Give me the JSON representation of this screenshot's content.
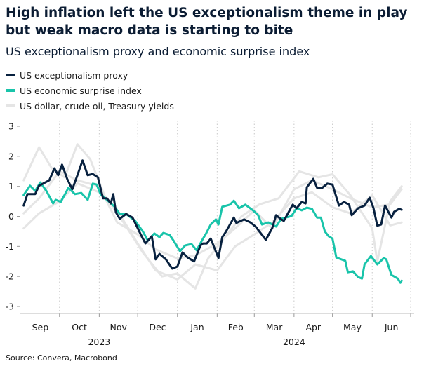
{
  "title": "High inflation left the US exceptionalism theme in play but weak macro data is starting to bite",
  "subtitle": "US exceptionalism proxy and economic surprise index",
  "source": "Source: Convera, Macrobond",
  "colors": {
    "proxy": "#08213f",
    "surprise": "#19c4aa",
    "grey": "#e5e5e5"
  },
  "chart_data": {
    "type": "line",
    "title": "High inflation left the US exceptionalism theme in play but weak macro data is starting to bite",
    "subtitle": "US exceptionalism proxy and economic surprise index",
    "xlim": [
      "2023-09-01",
      "2024-07-01"
    ],
    "ylim": [
      -3,
      3
    ],
    "yticks": [
      3,
      2,
      1,
      0,
      -1,
      -2,
      -3
    ],
    "month_ticks": [
      "Sep",
      "Oct",
      "Nov",
      "Dec",
      "Jan",
      "Feb",
      "Mar",
      "Apr",
      "May",
      "Jun"
    ],
    "year_labels": [
      "2023",
      "2024"
    ],
    "grid": "vertical dotted at month boundaries",
    "legend": [
      "US exceptionalism proxy",
      "US economic surprise index",
      "US dollar, crude oil, Treasury yields"
    ],
    "legend_placement": "top-left",
    "series": [
      {
        "name": "US exceptionalism proxy",
        "color": "#08213f",
        "points": [
          [
            "2023-09-03",
            0.36
          ],
          [
            "2023-09-06",
            0.74
          ],
          [
            "2023-09-12",
            0.74
          ],
          [
            "2023-09-15",
            1.02
          ],
          [
            "2023-09-23",
            1.2
          ],
          [
            "2023-09-27",
            1.6
          ],
          [
            "2023-09-30",
            1.37
          ],
          [
            "2023-10-03",
            1.72
          ],
          [
            "2023-10-07",
            1.25
          ],
          [
            "2023-10-11",
            0.9
          ],
          [
            "2023-10-15",
            1.37
          ],
          [
            "2023-10-19",
            1.86
          ],
          [
            "2023-10-23",
            1.37
          ],
          [
            "2023-10-27",
            1.41
          ],
          [
            "2023-10-31",
            1.3
          ],
          [
            "2023-11-04",
            0.6
          ],
          [
            "2023-11-07",
            0.6
          ],
          [
            "2023-11-10",
            0.43
          ],
          [
            "2023-11-12",
            0.74
          ],
          [
            "2023-11-14",
            0.13
          ],
          [
            "2023-11-17",
            -0.08
          ],
          [
            "2023-11-22",
            0.08
          ],
          [
            "2023-11-27",
            -0.04
          ],
          [
            "2023-12-03",
            -0.57
          ],
          [
            "2023-12-07",
            -0.9
          ],
          [
            "2023-12-12",
            -0.66
          ],
          [
            "2023-12-15",
            -1.43
          ],
          [
            "2023-12-18",
            -1.25
          ],
          [
            "2023-12-23",
            -1.43
          ],
          [
            "2023-12-28",
            -1.74
          ],
          [
            "2024-01-01",
            -1.67
          ],
          [
            "2024-01-05",
            -1.2
          ],
          [
            "2024-01-09",
            -1.37
          ],
          [
            "2024-01-14",
            -1.5
          ],
          [
            "2024-01-19",
            -0.97
          ],
          [
            "2024-01-21",
            -0.9
          ],
          [
            "2024-01-24",
            -0.9
          ],
          [
            "2024-01-27",
            -0.74
          ],
          [
            "2024-02-02",
            -1.39
          ],
          [
            "2024-02-05",
            -0.69
          ],
          [
            "2024-02-08",
            -0.5
          ],
          [
            "2024-02-14",
            -0.04
          ],
          [
            "2024-02-16",
            -0.22
          ],
          [
            "2024-02-22",
            -0.1
          ],
          [
            "2024-02-27",
            -0.2
          ],
          [
            "2024-03-02",
            -0.34
          ],
          [
            "2024-03-10",
            -0.78
          ],
          [
            "2024-03-15",
            -0.39
          ],
          [
            "2024-03-18",
            0.04
          ],
          [
            "2024-03-22",
            -0.1
          ],
          [
            "2024-03-24",
            -0.15
          ],
          [
            "2024-03-31",
            0.39
          ],
          [
            "2024-04-03",
            0.27
          ],
          [
            "2024-04-07",
            0.48
          ],
          [
            "2024-04-10",
            0.43
          ],
          [
            "2024-04-11",
            0.97
          ],
          [
            "2024-04-16",
            1.25
          ],
          [
            "2024-04-19",
            0.95
          ],
          [
            "2024-04-23",
            0.95
          ],
          [
            "2024-04-27",
            1.09
          ],
          [
            "2024-05-01",
            1.06
          ],
          [
            "2024-05-06",
            0.36
          ],
          [
            "2024-05-10",
            0.48
          ],
          [
            "2024-05-14",
            0.39
          ],
          [
            "2024-05-16",
            0.04
          ],
          [
            "2024-05-21",
            0.27
          ],
          [
            "2024-05-26",
            0.36
          ],
          [
            "2024-05-30",
            0.62
          ],
          [
            "2024-06-02",
            0.27
          ],
          [
            "2024-06-05",
            -0.31
          ],
          [
            "2024-06-08",
            -0.27
          ],
          [
            "2024-06-11",
            0.36
          ],
          [
            "2024-06-16",
            -0.04
          ],
          [
            "2024-06-18",
            0.15
          ],
          [
            "2024-06-22",
            0.25
          ],
          [
            "2024-06-24",
            0.22
          ]
        ]
      },
      {
        "name": "US economic surprise index",
        "color": "#19c4aa",
        "points": [
          [
            "2023-09-03",
            0.71
          ],
          [
            "2023-09-08",
            1.02
          ],
          [
            "2023-09-12",
            0.85
          ],
          [
            "2023-09-16",
            1.13
          ],
          [
            "2023-09-21",
            0.83
          ],
          [
            "2023-09-26",
            0.43
          ],
          [
            "2023-09-28",
            0.55
          ],
          [
            "2023-10-02",
            0.48
          ],
          [
            "2023-10-08",
            0.95
          ],
          [
            "2023-10-13",
            0.74
          ],
          [
            "2023-10-18",
            0.78
          ],
          [
            "2023-10-23",
            0.55
          ],
          [
            "2023-10-27",
            1.09
          ],
          [
            "2023-10-30",
            1.06
          ],
          [
            "2023-11-02",
            0.74
          ],
          [
            "2023-11-07",
            0.55
          ],
          [
            "2023-11-13",
            0.32
          ],
          [
            "2023-11-17",
            0.08
          ],
          [
            "2023-11-22",
            0.08
          ],
          [
            "2023-11-29",
            -0.15
          ],
          [
            "2023-12-05",
            -0.5
          ],
          [
            "2023-12-09",
            -0.81
          ],
          [
            "2023-12-14",
            -0.57
          ],
          [
            "2023-12-18",
            -0.69
          ],
          [
            "2023-12-21",
            -0.55
          ],
          [
            "2023-12-26",
            -0.62
          ],
          [
            "2023-12-29",
            -0.81
          ],
          [
            "2024-01-03",
            -1.16
          ],
          [
            "2024-01-07",
            -0.97
          ],
          [
            "2024-01-12",
            -0.92
          ],
          [
            "2024-01-16",
            -1.13
          ],
          [
            "2024-01-21",
            -0.74
          ],
          [
            "2024-01-23",
            -0.6
          ],
          [
            "2024-01-27",
            -0.27
          ],
          [
            "2024-01-31",
            -0.1
          ],
          [
            "2024-02-02",
            -0.27
          ],
          [
            "2024-02-05",
            0.32
          ],
          [
            "2024-02-11",
            0.39
          ],
          [
            "2024-02-14",
            0.52
          ],
          [
            "2024-02-18",
            0.27
          ],
          [
            "2024-02-23",
            0.39
          ],
          [
            "2024-02-29",
            0.2
          ],
          [
            "2024-03-04",
            0.04
          ],
          [
            "2024-03-07",
            -0.27
          ],
          [
            "2024-03-12",
            -0.2
          ],
          [
            "2024-03-18",
            -0.34
          ],
          [
            "2024-03-22",
            -0.08
          ],
          [
            "2024-03-30",
            0.01
          ],
          [
            "2024-04-03",
            0.27
          ],
          [
            "2024-04-07",
            0.2
          ],
          [
            "2024-04-11",
            0.29
          ],
          [
            "2024-04-15",
            0.25
          ],
          [
            "2024-04-19",
            -0.04
          ],
          [
            "2024-04-22",
            -0.04
          ],
          [
            "2024-04-25",
            -0.5
          ],
          [
            "2024-04-28",
            -0.66
          ],
          [
            "2024-05-01",
            -0.74
          ],
          [
            "2024-05-04",
            -1.37
          ],
          [
            "2024-05-11",
            -1.48
          ],
          [
            "2024-05-13",
            -1.86
          ],
          [
            "2024-05-17",
            -1.83
          ],
          [
            "2024-05-21",
            -2.02
          ],
          [
            "2024-05-24",
            -2.07
          ],
          [
            "2024-05-26",
            -1.6
          ],
          [
            "2024-05-31",
            -1.32
          ],
          [
            "2024-06-05",
            -1.6
          ],
          [
            "2024-06-10",
            -1.39
          ],
          [
            "2024-06-12",
            -1.43
          ],
          [
            "2024-06-16",
            -1.95
          ],
          [
            "2024-06-21",
            -2.07
          ],
          [
            "2024-06-23",
            -2.21
          ],
          [
            "2024-06-24",
            -2.14
          ]
        ]
      },
      {
        "group": "US dollar, crude oil, Treasury yields",
        "color": "#e5e5e5",
        "points": [
          [
            "2023-09-03",
            1.2
          ],
          [
            "2023-09-15",
            2.3
          ],
          [
            "2023-09-25",
            1.6
          ],
          [
            "2023-10-05",
            1.3
          ],
          [
            "2023-10-15",
            2.4
          ],
          [
            "2023-10-25",
            1.9
          ],
          [
            "2023-11-05",
            0.7
          ],
          [
            "2023-11-20",
            -0.2
          ],
          [
            "2023-12-05",
            -1.2
          ],
          [
            "2023-12-20",
            -2.0
          ],
          [
            "2024-01-01",
            -1.9
          ],
          [
            "2024-01-15",
            -2.4
          ],
          [
            "2024-01-25",
            -1.4
          ],
          [
            "2024-02-05",
            -0.8
          ],
          [
            "2024-02-20",
            0.0
          ],
          [
            "2024-03-05",
            0.4
          ],
          [
            "2024-03-20",
            0.6
          ],
          [
            "2024-04-05",
            1.5
          ],
          [
            "2024-04-20",
            1.3
          ],
          [
            "2024-05-01",
            1.4
          ],
          [
            "2024-05-15",
            0.7
          ],
          [
            "2024-06-01",
            -0.4
          ],
          [
            "2024-06-05",
            -1.5
          ],
          [
            "2024-06-15",
            0.5
          ],
          [
            "2024-06-24",
            1.0
          ]
        ]
      },
      {
        "group": "US dollar, crude oil, Treasury yields",
        "color": "#e5e5e5",
        "points": [
          [
            "2023-09-03",
            -0.4
          ],
          [
            "2023-09-15",
            0.1
          ],
          [
            "2023-10-01",
            0.5
          ],
          [
            "2023-10-15",
            1.1
          ],
          [
            "2023-11-01",
            0.8
          ],
          [
            "2023-11-15",
            0.2
          ],
          [
            "2023-12-01",
            -0.9
          ],
          [
            "2023-12-15",
            -1.8
          ],
          [
            "2024-01-01",
            -2.1
          ],
          [
            "2024-01-15",
            -1.6
          ],
          [
            "2024-02-01",
            -1.8
          ],
          [
            "2024-02-15",
            -1.0
          ],
          [
            "2024-03-01",
            -0.6
          ],
          [
            "2024-03-15",
            -0.2
          ],
          [
            "2024-04-01",
            0.6
          ],
          [
            "2024-04-15",
            0.8
          ],
          [
            "2024-05-01",
            0.3
          ],
          [
            "2024-05-15",
            0.1
          ],
          [
            "2024-06-01",
            0.7
          ],
          [
            "2024-06-15",
            -0.3
          ],
          [
            "2024-06-24",
            -0.2
          ]
        ]
      },
      {
        "group": "US dollar, crude oil, Treasury yields",
        "color": "#e5e5e5",
        "points": [
          [
            "2023-09-03",
            0.1
          ],
          [
            "2023-09-15",
            0.6
          ],
          [
            "2023-10-01",
            1.5
          ],
          [
            "2023-10-15",
            1.2
          ],
          [
            "2023-11-01",
            1.0
          ],
          [
            "2023-11-15",
            -0.2
          ],
          [
            "2023-12-01",
            -0.6
          ],
          [
            "2023-12-15",
            -1.1
          ],
          [
            "2024-01-01",
            -1.4
          ],
          [
            "2024-01-15",
            -1.3
          ],
          [
            "2024-02-01",
            -0.9
          ],
          [
            "2024-02-15",
            -0.4
          ],
          [
            "2024-03-01",
            0.2
          ],
          [
            "2024-03-15",
            -0.4
          ],
          [
            "2024-04-01",
            0.9
          ],
          [
            "2024-04-15",
            1.2
          ],
          [
            "2024-05-01",
            0.9
          ],
          [
            "2024-05-15",
            0.6
          ],
          [
            "2024-06-01",
            0.3
          ],
          [
            "2024-06-15",
            0.4
          ],
          [
            "2024-06-24",
            0.9
          ]
        ]
      }
    ]
  }
}
